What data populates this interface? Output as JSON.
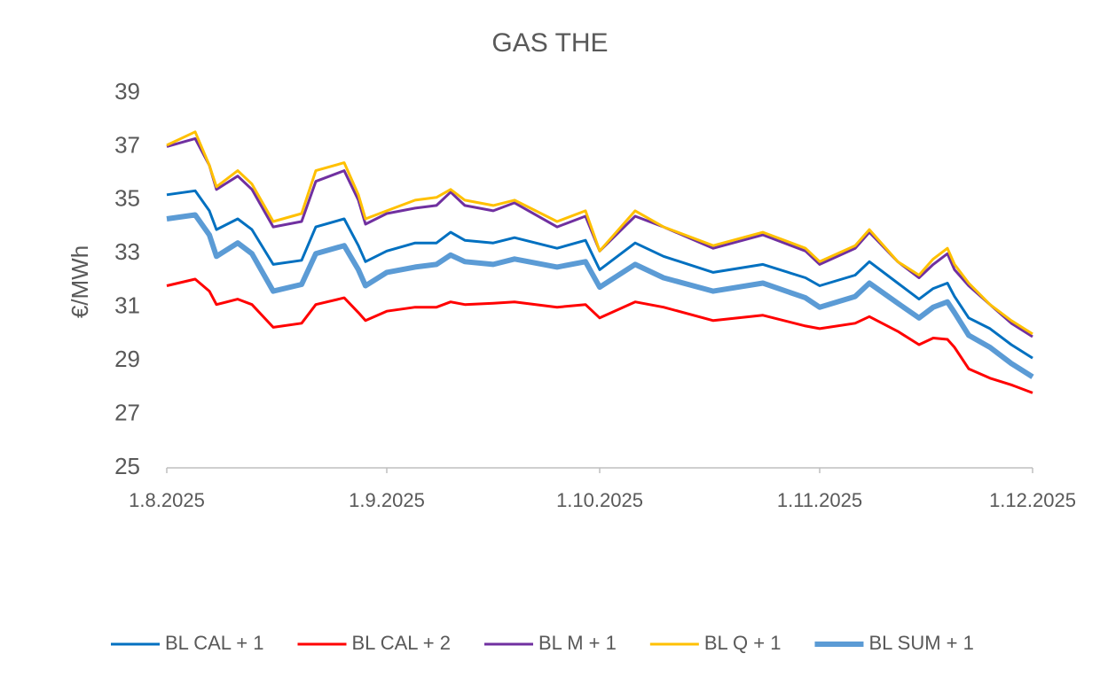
{
  "chart_data": {
    "type": "line",
    "title": "GAS THE",
    "y_label": "€/MWh",
    "x": [
      "1.8.2025",
      "5.8.2025",
      "7.8.2025",
      "8.8.2025",
      "11.8.2025",
      "13.8.2025",
      "16.8.2025",
      "20.8.2025",
      "22.8.2025",
      "26.8.2025",
      "28.8.2025",
      "29.8.2025",
      "1.9.2025",
      "5.9.2025",
      "8.9.2025",
      "10.9.2025",
      "12.9.2025",
      "16.9.2025",
      "19.9.2025",
      "25.9.2025",
      "29.9.2025",
      "1.10.2025",
      "6.10.2025",
      "10.10.2025",
      "17.10.2025",
      "24.10.2025",
      "30.10.2025",
      "1.11.2025",
      "6.11.2025",
      "8.11.2025",
      "12.11.2025",
      "15.11.2025",
      "17.11.2025",
      "19.11.2025",
      "20.11.2025",
      "22.11.2025",
      "25.11.2025",
      "28.11.2025",
      "1.12.2025"
    ],
    "xlim": [
      "1.8.2025",
      "1.12.2025"
    ],
    "xticks": [
      "1.8.2025",
      "1.9.2025",
      "1.10.2025",
      "1.11.2025",
      "1.12.2025"
    ],
    "ylim": [
      25,
      39
    ],
    "yticks": [
      25,
      27,
      29,
      31,
      33,
      35,
      37,
      39
    ],
    "grid": false,
    "legend": "bottom",
    "series": [
      {
        "name": "BL CAL + 1",
        "color": "#0070c0",
        "width": 3,
        "values": [
          35.2,
          35.35,
          34.6,
          33.9,
          34.3,
          33.9,
          32.6,
          32.75,
          34.0,
          34.3,
          33.3,
          32.7,
          33.1,
          33.4,
          33.4,
          33.8,
          33.5,
          33.4,
          33.6,
          33.2,
          33.5,
          32.4,
          33.4,
          32.9,
          32.3,
          32.6,
          32.1,
          31.8,
          32.2,
          32.7,
          31.9,
          31.3,
          31.7,
          31.9,
          31.4,
          30.6,
          30.2,
          29.6,
          29.1
        ]
      },
      {
        "name": "BL CAL + 2",
        "color": "#ff0000",
        "width": 3,
        "values": [
          31.8,
          32.05,
          31.6,
          31.1,
          31.3,
          31.1,
          30.25,
          30.4,
          31.1,
          31.35,
          30.8,
          30.5,
          30.85,
          31.0,
          31.0,
          31.2,
          31.1,
          31.15,
          31.2,
          31.0,
          31.1,
          30.6,
          31.2,
          31.0,
          30.5,
          30.7,
          30.3,
          30.2,
          30.4,
          30.65,
          30.1,
          29.6,
          29.85,
          29.8,
          29.5,
          28.7,
          28.35,
          28.1,
          27.8
        ]
      },
      {
        "name": "BL M + 1",
        "color": "#7030a0",
        "width": 3,
        "values": [
          37.0,
          37.3,
          36.3,
          35.4,
          35.9,
          35.4,
          34.0,
          34.2,
          35.7,
          36.1,
          35.0,
          34.1,
          34.5,
          34.7,
          34.8,
          35.3,
          34.8,
          34.6,
          34.9,
          34.0,
          34.4,
          33.1,
          34.4,
          34.0,
          33.2,
          33.7,
          33.1,
          32.6,
          33.2,
          33.8,
          32.7,
          32.1,
          32.6,
          33.0,
          32.4,
          31.8,
          31.1,
          30.4,
          29.9
        ]
      },
      {
        "name": "BL Q + 1",
        "color": "#ffc000",
        "width": 3,
        "values": [
          37.05,
          37.55,
          36.3,
          35.5,
          36.1,
          35.6,
          34.2,
          34.5,
          36.1,
          36.4,
          35.2,
          34.3,
          34.6,
          35.0,
          35.1,
          35.4,
          35.0,
          34.8,
          35.0,
          34.2,
          34.6,
          33.1,
          34.6,
          34.0,
          33.3,
          33.8,
          33.2,
          32.7,
          33.3,
          33.9,
          32.7,
          32.2,
          32.8,
          33.2,
          32.6,
          31.9,
          31.1,
          30.5,
          30.0
        ]
      },
      {
        "name": "BL SUM + 1",
        "color": "#5b9bd5",
        "width": 6,
        "values": [
          34.3,
          34.45,
          33.7,
          32.9,
          33.4,
          33.0,
          31.6,
          31.85,
          33.0,
          33.3,
          32.4,
          31.8,
          32.3,
          32.5,
          32.6,
          32.95,
          32.7,
          32.6,
          32.8,
          32.5,
          32.7,
          31.75,
          32.6,
          32.1,
          31.6,
          31.9,
          31.35,
          31.0,
          31.4,
          31.9,
          31.15,
          30.6,
          31.0,
          31.2,
          30.8,
          29.95,
          29.5,
          28.9,
          28.4
        ]
      }
    ]
  }
}
